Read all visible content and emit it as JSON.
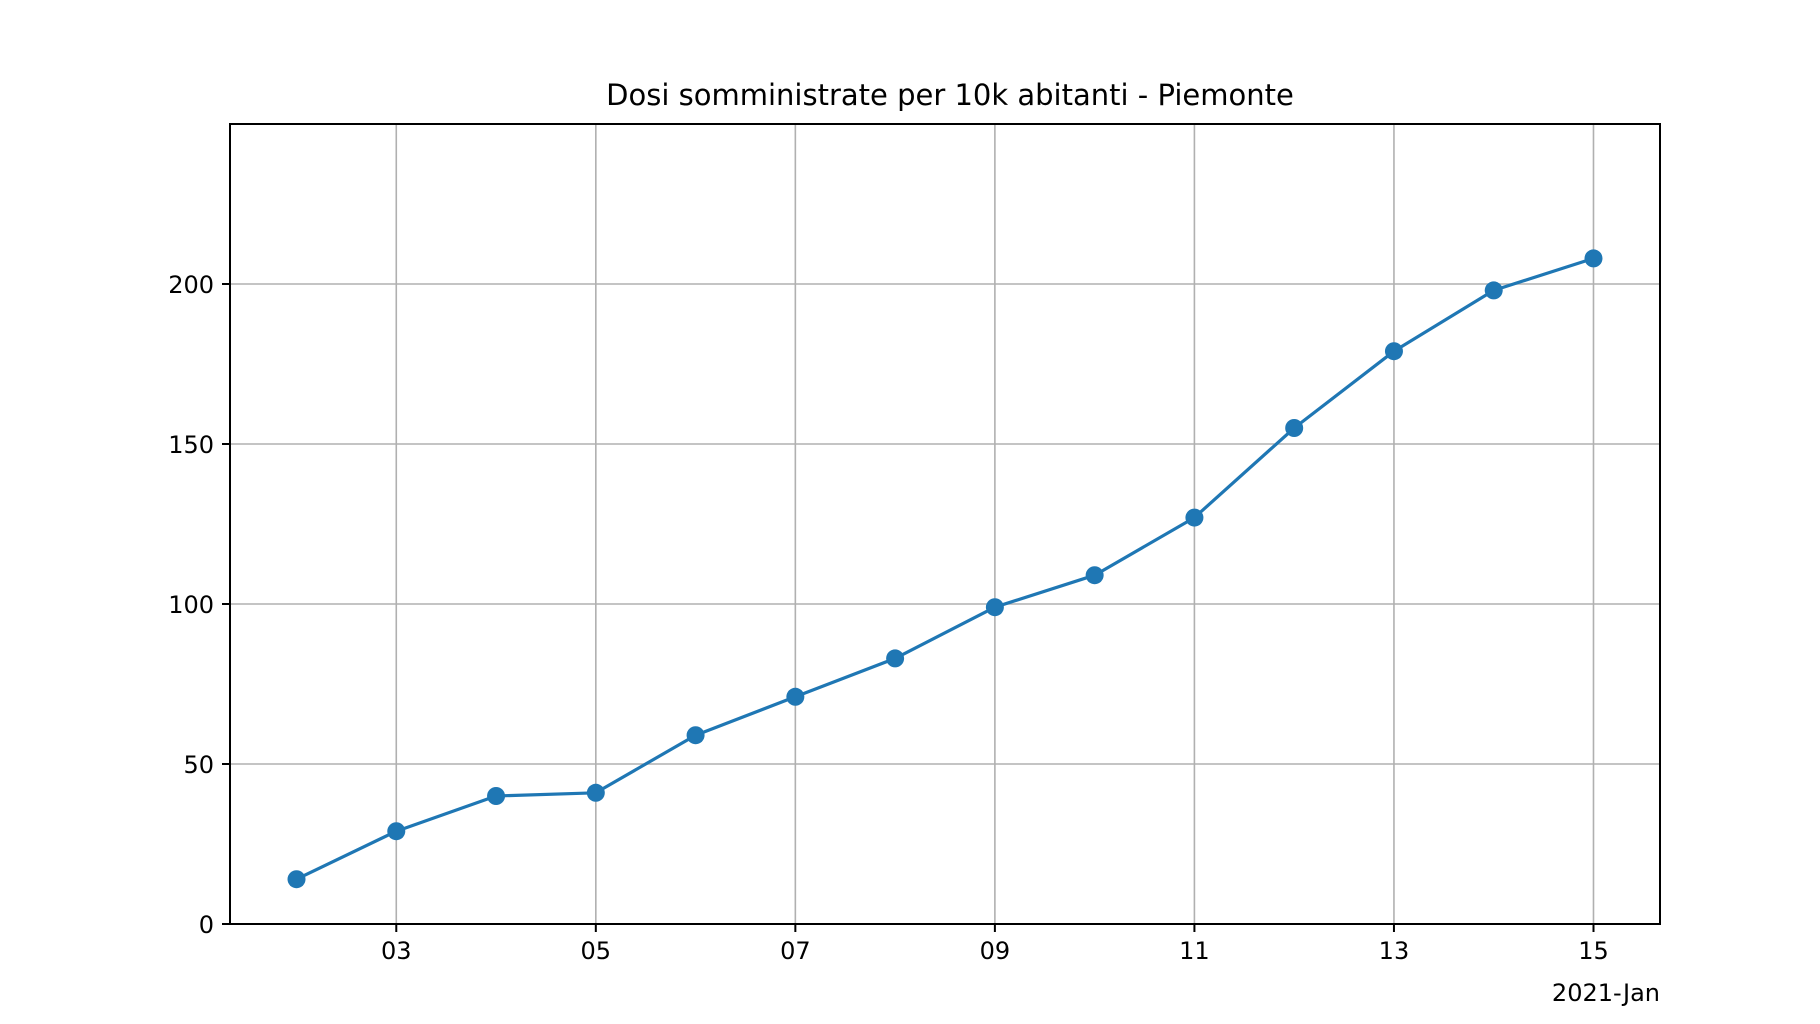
{
  "chart_data": {
    "type": "line",
    "title": "Dosi somministrate per 10k abitanti - Piemonte",
    "xlabel": "",
    "ylabel": "",
    "x_axis_offset_label": "2021-Jan",
    "x": [
      "2021-01-02",
      "2021-01-03",
      "2021-01-04",
      "2021-01-05",
      "2021-01-06",
      "2021-01-07",
      "2021-01-08",
      "2021-01-09",
      "2021-01-10",
      "2021-01-11",
      "2021-01-12",
      "2021-01-13",
      "2021-01-14",
      "2021-01-15"
    ],
    "series": [
      {
        "values": [
          14,
          29,
          40,
          41,
          59,
          71,
          83,
          99,
          109,
          127,
          155,
          179,
          198,
          208
        ],
        "color": "#1f77b4",
        "marker": "circle"
      }
    ],
    "xlim": [
      "2021-01-01T08:00",
      "2021-01-15T16:00"
    ],
    "ylim": [
      0,
      250
    ],
    "x_ticks": [
      "2021-01-03",
      "2021-01-05",
      "2021-01-07",
      "2021-01-09",
      "2021-01-11",
      "2021-01-13",
      "2021-01-15"
    ],
    "x_tick_labels": [
      "03",
      "05",
      "07",
      "09",
      "11",
      "13",
      "15"
    ],
    "y_ticks": [
      0,
      50,
      100,
      150,
      200
    ],
    "y_tick_labels": [
      "0",
      "50",
      "100",
      "150",
      "200"
    ],
    "grid": true,
    "legend": "none"
  }
}
